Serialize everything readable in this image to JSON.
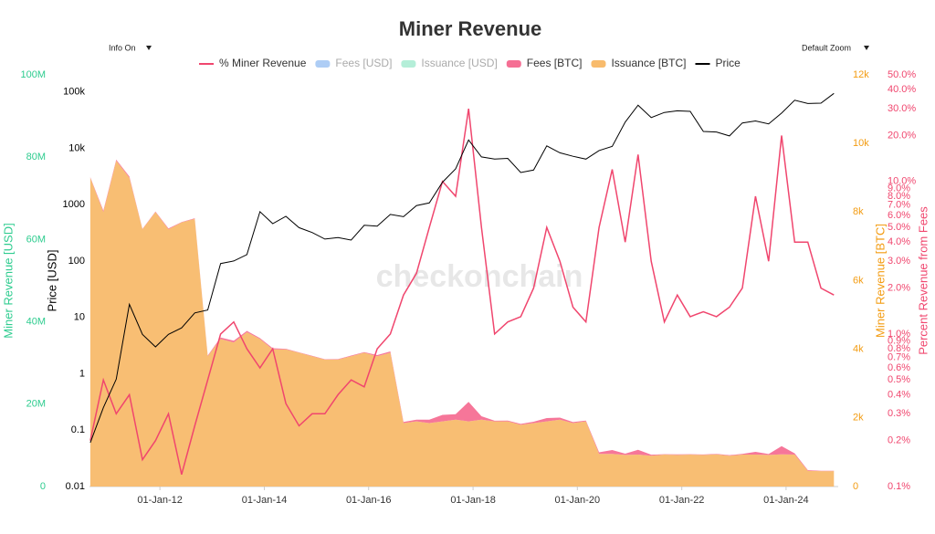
{
  "chart_data": {
    "type": "multi-axis",
    "title": "Miner Revenue",
    "watermark": "checkonchain",
    "controls": {
      "info": "Info On",
      "zoom": "Default Zoom"
    },
    "x": [
      "2010-09-01",
      "2010-12-01",
      "2011-03-01",
      "2011-06-01",
      "2011-09-01",
      "2011-12-01",
      "2012-03-01",
      "2012-06-01",
      "2012-09-01",
      "2012-12-01",
      "2013-03-01",
      "2013-06-01",
      "2013-09-01",
      "2013-12-01",
      "2014-03-01",
      "2014-06-01",
      "2014-09-01",
      "2014-12-01",
      "2015-03-01",
      "2015-06-01",
      "2015-09-01",
      "2015-12-01",
      "2016-03-01",
      "2016-06-01",
      "2016-09-01",
      "2016-12-01",
      "2017-03-01",
      "2017-06-01",
      "2017-09-01",
      "2017-12-01",
      "2018-03-01",
      "2018-06-01",
      "2018-09-01",
      "2018-12-01",
      "2019-03-01",
      "2019-06-01",
      "2019-09-01",
      "2019-12-01",
      "2020-03-01",
      "2020-06-01",
      "2020-09-01",
      "2020-12-01",
      "2021-03-01",
      "2021-06-01",
      "2021-09-01",
      "2021-12-01",
      "2022-03-01",
      "2022-06-01",
      "2022-09-01",
      "2022-12-01",
      "2023-03-01",
      "2023-06-01",
      "2023-09-01",
      "2023-12-01",
      "2024-03-01",
      "2024-06-01",
      "2024-09-01",
      "2024-12-01"
    ],
    "xlim": [
      "2010-08-26",
      "2024-12-31"
    ],
    "xticks": [
      {
        "value": "2012-01-01",
        "label": "01-Jan-12"
      },
      {
        "value": "2014-01-01",
        "label": "01-Jan-14"
      },
      {
        "value": "2016-01-01",
        "label": "01-Jan-16"
      },
      {
        "value": "2018-01-01",
        "label": "01-Jan-18"
      },
      {
        "value": "2020-01-01",
        "label": "01-Jan-20"
      },
      {
        "value": "2022-01-01",
        "label": "01-Jan-22"
      },
      {
        "value": "2024-01-01",
        "label": "01-Jan-24"
      }
    ],
    "axes": [
      {
        "id": "usd",
        "label": "Miner Revenue [USD]",
        "side": "left",
        "scale": "linear",
        "color": "#2ecc8f",
        "lim": [
          0,
          100000000
        ],
        "ticks": [
          0,
          {
            "value": 20000000,
            "label": "20M"
          },
          {
            "value": 40000000,
            "label": "40M"
          },
          {
            "value": 60000000,
            "label": "60M"
          },
          {
            "value": 80000000,
            "label": "80M"
          },
          {
            "value": 100000000,
            "label": "100M"
          }
        ]
      },
      {
        "id": "price",
        "label": "Price [USD]",
        "side": "left",
        "scale": "log",
        "color": "#000000",
        "lim": [
          0.01,
          200000
        ],
        "ticks": [
          0.01,
          0.1,
          1,
          10,
          100,
          1000,
          {
            "value": 10000,
            "label": "10k"
          },
          {
            "value": 100000,
            "label": "100k"
          }
        ]
      },
      {
        "id": "btc",
        "label": "Miner Revenue [BTC]",
        "side": "right",
        "scale": "linear",
        "color": "#f39c12",
        "lim": [
          0,
          12000
        ],
        "ticks": [
          0,
          {
            "value": 2000,
            "label": "2k"
          },
          {
            "value": 4000,
            "label": "4k"
          },
          {
            "value": 6000,
            "label": "6k"
          },
          {
            "value": 8000,
            "label": "8k"
          },
          {
            "value": 10000,
            "label": "10k"
          },
          {
            "value": 12000,
            "label": "12k"
          }
        ]
      },
      {
        "id": "pct",
        "label": "Percent Revenue from Fees",
        "side": "right",
        "scale": "log",
        "color": "#f0466e",
        "lim": [
          0.1,
          50
        ],
        "ticks": [
          {
            "value": 0.1,
            "label": "0.1%"
          },
          {
            "value": 0.2,
            "label": "0.2%"
          },
          {
            "value": 0.3,
            "label": "0.3%"
          },
          {
            "value": 0.4,
            "label": "0.4%"
          },
          {
            "value": 0.5,
            "label": "0.5%"
          },
          {
            "value": 0.6,
            "label": "0.6%"
          },
          {
            "value": 0.7,
            "label": "0.7%"
          },
          {
            "value": 0.8,
            "label": "0.8%"
          },
          {
            "value": 0.9,
            "label": "0.9%"
          },
          {
            "value": 1,
            "label": "1.0%"
          },
          {
            "value": 2,
            "label": "2.0%"
          },
          {
            "value": 3,
            "label": "3.0%"
          },
          {
            "value": 4,
            "label": "4.0%"
          },
          {
            "value": 5,
            "label": "5.0%"
          },
          {
            "value": 6,
            "label": "6.0%"
          },
          {
            "value": 7,
            "label": "7.0%"
          },
          {
            "value": 8,
            "label": "8.0%"
          },
          {
            "value": 9,
            "label": "9.0%"
          },
          {
            "value": 10,
            "label": "10.0%"
          },
          {
            "value": 20,
            "label": "20.0%"
          },
          {
            "value": 30,
            "label": "30.0%"
          },
          {
            "value": 40,
            "label": "40.0%"
          },
          {
            "value": 50,
            "label": "50.0%"
          }
        ]
      }
    ],
    "series": [
      {
        "name": "% Miner Revenue",
        "kind": "line",
        "axis": "pct",
        "color": "#f0466e",
        "visible": true,
        "values": [
          0.2,
          0.5,
          0.3,
          0.4,
          0.15,
          0.2,
          0.3,
          0.12,
          0.25,
          0.5,
          1.0,
          1.2,
          0.8,
          0.6,
          0.8,
          0.35,
          0.25,
          0.3,
          0.3,
          0.4,
          0.5,
          0.45,
          0.8,
          1.0,
          1.8,
          2.5,
          5,
          10,
          8,
          30,
          5,
          1.0,
          1.2,
          1.3,
          2.0,
          5,
          3,
          1.5,
          1.2,
          5,
          12,
          4,
          15,
          3,
          1.2,
          1.8,
          1.3,
          1.4,
          1.3,
          1.5,
          2.0,
          8,
          3,
          20,
          4,
          4,
          2.0,
          1.8
        ]
      },
      {
        "name": "Fees [USD]",
        "kind": "area",
        "axis": "usd",
        "color": "#aecdf5",
        "visible": false
      },
      {
        "name": "Issuance [USD]",
        "kind": "area",
        "axis": "usd",
        "color": "#b4eed8",
        "visible": false
      },
      {
        "name": "Fees [BTC]",
        "kind": "area",
        "axis": "btc",
        "stack_on": 4,
        "color": "#f56f94",
        "visible": true,
        "values": [
          18,
          40,
          28,
          36,
          11,
          16,
          23,
          9,
          20,
          19,
          43,
          51,
          36,
          26,
          32,
          14,
          10,
          11,
          11,
          15,
          19,
          18,
          31,
          39,
          34,
          49,
          97,
          190,
          160,
          570,
          100,
          19,
          23,
          24,
          38,
          95,
          59,
          28,
          23,
          48,
          115,
          38,
          142,
          28,
          11,
          17,
          12,
          13,
          12,
          14,
          19,
          80,
          28,
          235,
          39,
          19,
          9,
          8
        ]
      },
      {
        "name": "Issuance [BTC]",
        "kind": "area",
        "axis": "btc",
        "color": "#f8bb6c",
        "visible": true,
        "values": [
          9000,
          8000,
          9500,
          9000,
          7500,
          8000,
          7500,
          7700,
          7800,
          3800,
          4300,
          4200,
          4500,
          4300,
          4000,
          4000,
          3900,
          3800,
          3700,
          3700,
          3800,
          3900,
          3800,
          3900,
          1850,
          1900,
          1850,
          1900,
          1950,
          1900,
          1950,
          1900,
          1900,
          1800,
          1850,
          1900,
          1950,
          1850,
          1900,
          950,
          950,
          920,
          930,
          900,
          930,
          920,
          930,
          920,
          940,
          900,
          930,
          930,
          920,
          940,
          930,
          460,
          450,
          450
        ]
      },
      {
        "name": "Price",
        "kind": "line",
        "axis": "price",
        "color": "#000000",
        "visible": true,
        "values": [
          0.06,
          0.25,
          0.8,
          17,
          5,
          3,
          5,
          6.5,
          12,
          13.5,
          90,
          100,
          130,
          750,
          460,
          620,
          390,
          320,
          245,
          260,
          235,
          430,
          415,
          670,
          610,
          960,
          1070,
          2500,
          4300,
          14000,
          7000,
          6400,
          6600,
          3700,
          4100,
          11000,
          8300,
          7200,
          6400,
          9100,
          10800,
          29000,
          58000,
          35000,
          43000,
          46000,
          45000,
          19800,
          19400,
          16500,
          28000,
          30500,
          27000,
          42000,
          71000,
          62000,
          63000,
          94000
        ]
      }
    ]
  }
}
